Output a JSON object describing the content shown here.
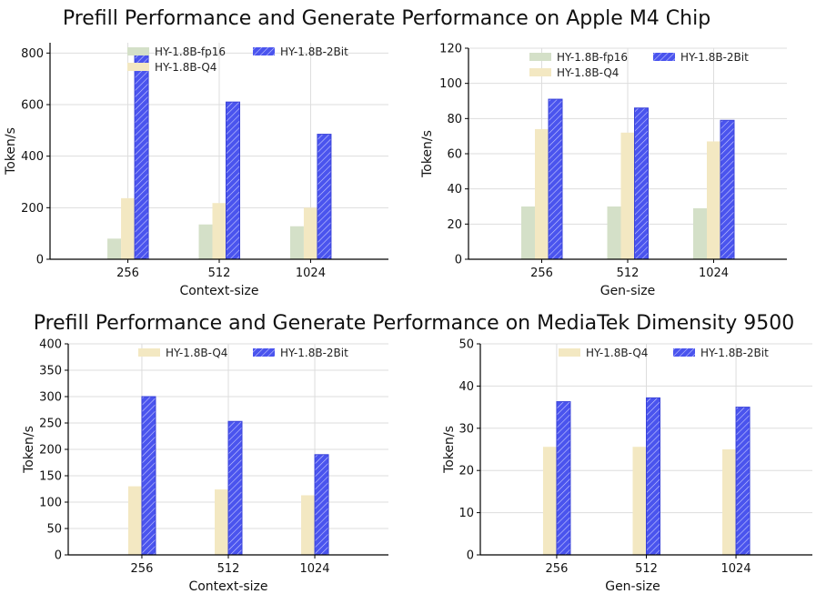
{
  "section_titles": {
    "top": "Prefill Performance and Generate Performance on Apple M4 Chip",
    "bottom": "Prefill Performance and Generate Performance on MediaTek Dimensity 9500"
  },
  "colors": {
    "fp16": "#d4e0c8",
    "q4": "#f3e8c2",
    "twobit": "#4a54ee",
    "grid": "#dddddd",
    "axis": "#000000"
  },
  "chart_data": [
    {
      "id": "m4-prefill",
      "type": "bar",
      "title": "",
      "xlabel": "Context-size",
      "ylabel": "Token/s",
      "categories": [
        "256",
        "512",
        "1024"
      ],
      "ylim": [
        0,
        840
      ],
      "yticks": [
        0,
        200,
        400,
        600,
        800
      ],
      "grid": true,
      "legend_position": "top",
      "legend_ncol": 2,
      "series": [
        {
          "name": "HY-1.8B-fp16",
          "key": "fp16",
          "values": [
            80,
            135,
            128
          ]
        },
        {
          "name": "HY-1.8B-Q4",
          "key": "q4",
          "values": [
            237,
            218,
            200
          ]
        },
        {
          "name": "HY-1.8B-2Bit",
          "key": "twobit",
          "values": [
            795,
            610,
            485
          ]
        }
      ]
    },
    {
      "id": "m4-generate",
      "type": "bar",
      "title": "",
      "xlabel": "Gen-size",
      "ylabel": "Token/s",
      "categories": [
        "256",
        "512",
        "1024"
      ],
      "ylim": [
        0,
        120
      ],
      "yticks": [
        0,
        20,
        40,
        60,
        80,
        100,
        120
      ],
      "grid": true,
      "legend_position": "top",
      "legend_ncol": 2,
      "series": [
        {
          "name": "HY-1.8B-fp16",
          "key": "fp16",
          "values": [
            30,
            30,
            29
          ]
        },
        {
          "name": "HY-1.8B-Q4",
          "key": "q4",
          "values": [
            74,
            72,
            67
          ]
        },
        {
          "name": "HY-1.8B-2Bit",
          "key": "twobit",
          "values": [
            91,
            86,
            79
          ]
        }
      ]
    },
    {
      "id": "dimensity-prefill",
      "type": "bar",
      "title": "",
      "xlabel": "Context-size",
      "ylabel": "Token/s",
      "categories": [
        "256",
        "512",
        "1024"
      ],
      "ylim": [
        0,
        400
      ],
      "yticks": [
        0,
        50,
        100,
        150,
        200,
        250,
        300,
        350,
        400
      ],
      "grid": true,
      "legend_position": "top-right",
      "legend_ncol": 2,
      "series": [
        {
          "name": "HY-1.8B-Q4",
          "key": "q4",
          "values": [
            130,
            124,
            113
          ]
        },
        {
          "name": "HY-1.8B-2Bit",
          "key": "twobit",
          "values": [
            300,
            253,
            190
          ]
        }
      ]
    },
    {
      "id": "dimensity-generate",
      "type": "bar",
      "title": "",
      "xlabel": "Gen-size",
      "ylabel": "Token/s",
      "categories": [
        "256",
        "512",
        "1024"
      ],
      "ylim": [
        0,
        50
      ],
      "yticks": [
        0,
        10,
        20,
        30,
        40,
        50
      ],
      "grid": true,
      "legend_position": "top-right",
      "legend_ncol": 2,
      "series": [
        {
          "name": "HY-1.8B-Q4",
          "key": "q4",
          "values": [
            25.6,
            25.6,
            25
          ]
        },
        {
          "name": "HY-1.8B-2Bit",
          "key": "twobit",
          "values": [
            36.3,
            37.2,
            35
          ]
        }
      ]
    }
  ]
}
